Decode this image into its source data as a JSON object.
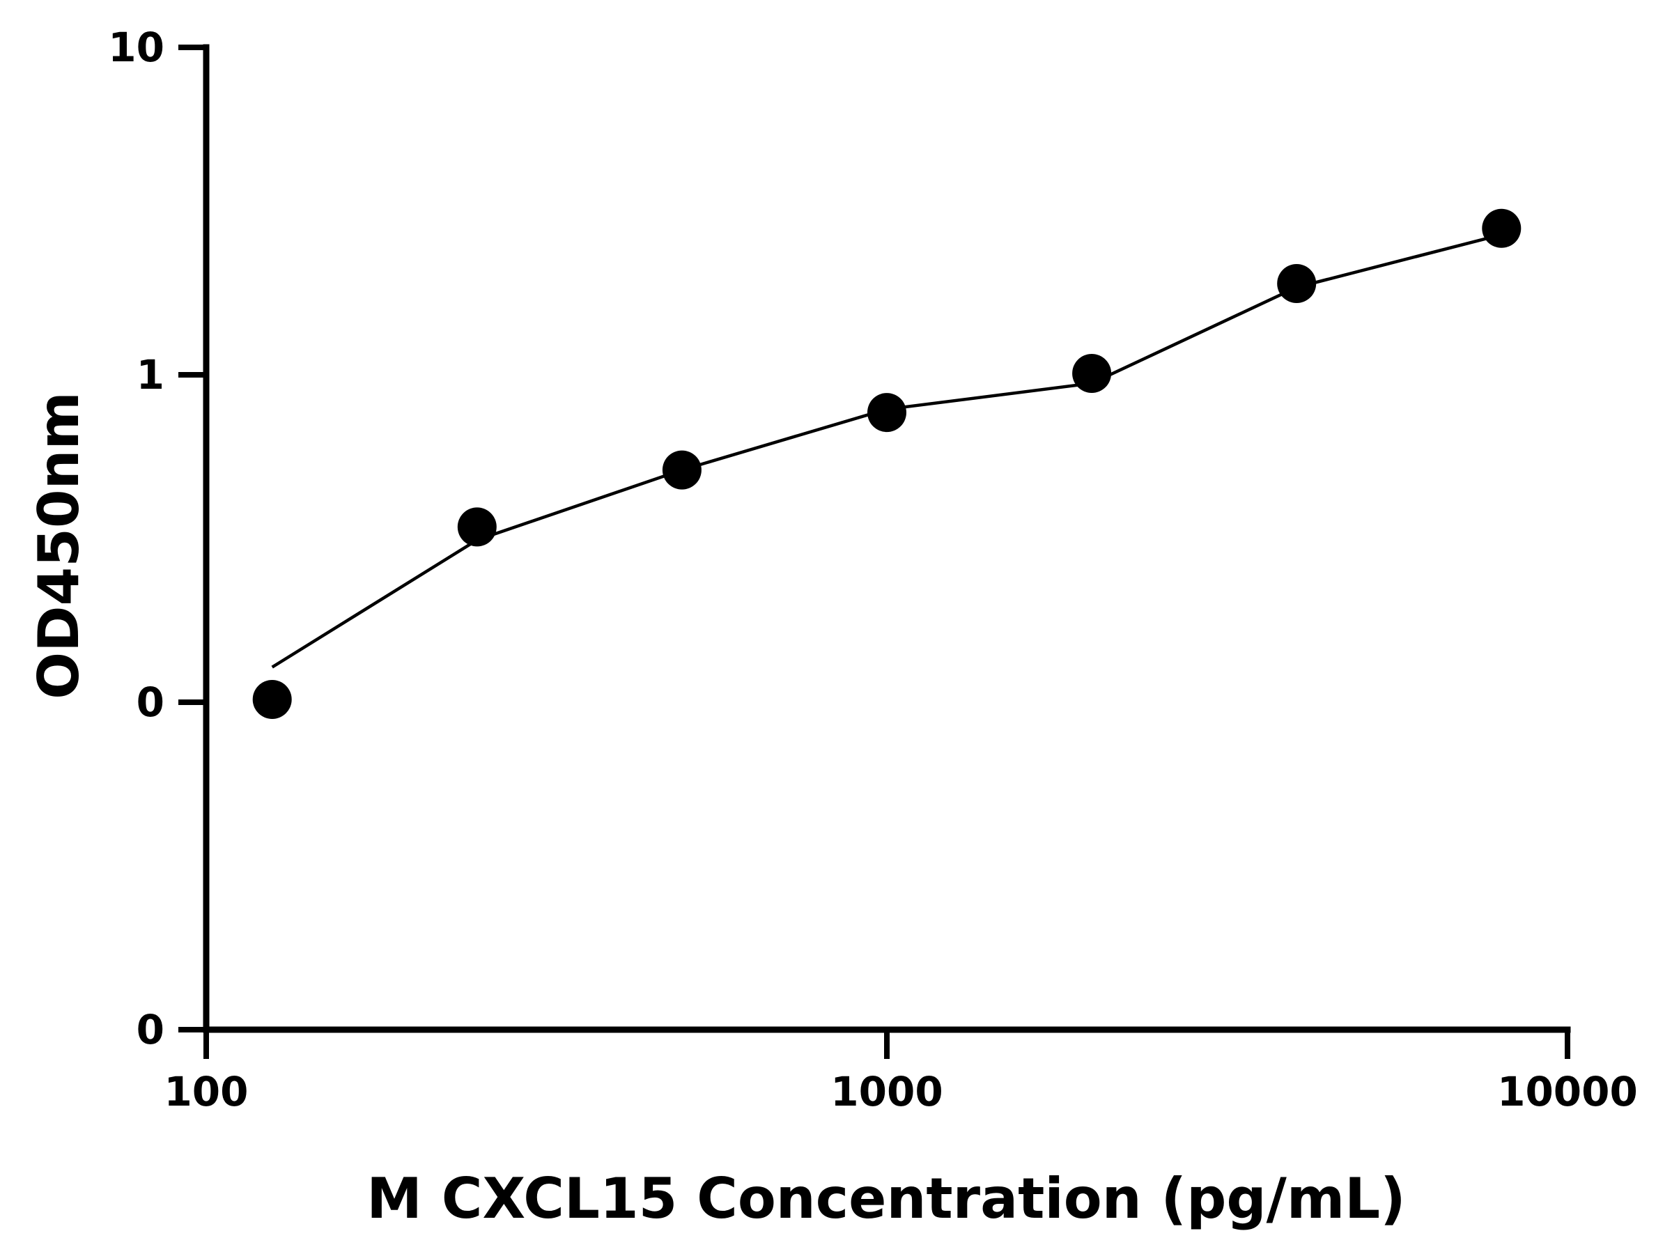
{
  "chart_data": {
    "type": "scatter",
    "xlabel": "M CXCL15 Concentration (pg/mL)",
    "ylabel": "OD450nm",
    "x_scale": "log",
    "y_scale": "log",
    "xlim": [
      100,
      10000
    ],
    "ylim": [
      0.01,
      10
    ],
    "x_ticks": [
      {
        "value": 100,
        "label": "100"
      },
      {
        "value": 1000,
        "label": "1000"
      },
      {
        "value": 10000,
        "label": "10000"
      }
    ],
    "y_ticks": [
      {
        "value": 0.01,
        "label": "0"
      },
      {
        "value": 0.1,
        "label": "0"
      },
      {
        "value": 1,
        "label": "1"
      },
      {
        "value": 10,
        "label": "10"
      }
    ],
    "series": [
      {
        "points": [
          {
            "x": 125,
            "y": 0.102
          },
          {
            "x": 250,
            "y": 0.343
          },
          {
            "x": 500,
            "y": 0.512
          },
          {
            "x": 1000,
            "y": 0.767
          },
          {
            "x": 2000,
            "y": 1.01
          },
          {
            "x": 4000,
            "y": 1.9
          },
          {
            "x": 8000,
            "y": 2.8
          }
        ]
      }
    ],
    "fit_curve": {
      "x": [
        125,
        250,
        500,
        1000,
        2000,
        4000,
        8000
      ],
      "y": [
        0.128,
        0.313,
        0.512,
        0.785,
        0.942,
        1.85,
        2.68
      ]
    },
    "grid": false,
    "legend": "none",
    "colors": {
      "points": "#000000",
      "line": "#000000",
      "axis": "#000000"
    }
  }
}
